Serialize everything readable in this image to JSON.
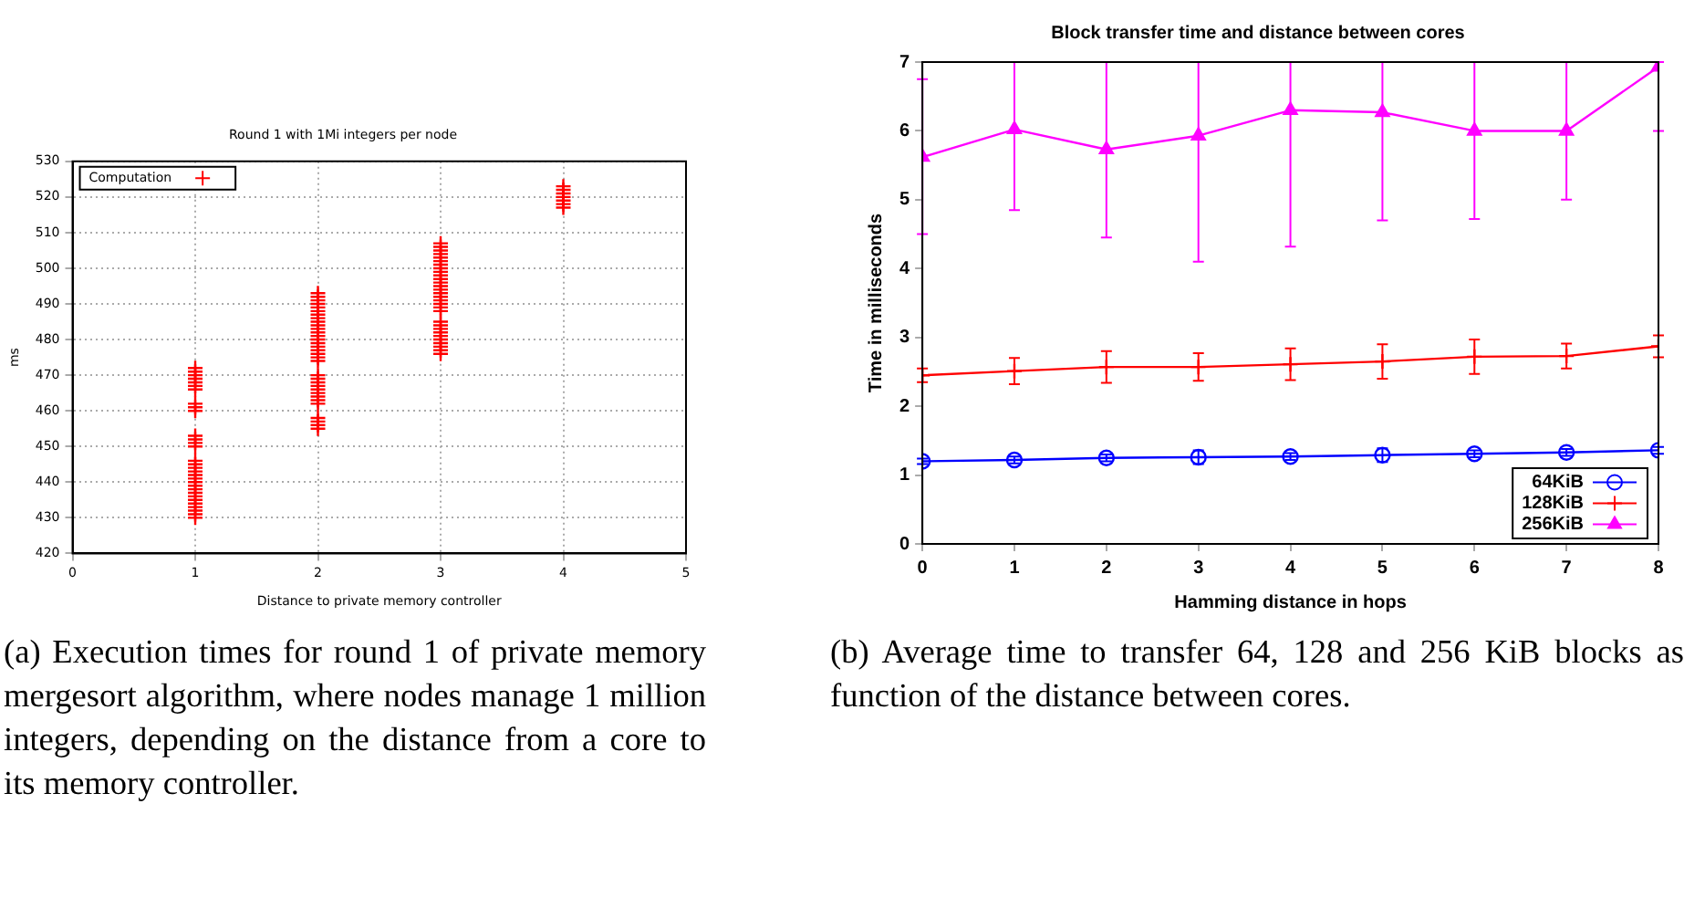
{
  "chart_data": [
    {
      "type": "scatter",
      "title": "Round 1 with 1Mi integers per node",
      "xlabel": "Distance to private memory controller",
      "ylabel": "ms",
      "xlim": [
        0,
        5
      ],
      "xticks": [
        0,
        1,
        2,
        3,
        4,
        5
      ],
      "ylim": [
        420,
        530
      ],
      "yticks": [
        420,
        430,
        440,
        450,
        460,
        470,
        480,
        490,
        500,
        510,
        520,
        530
      ],
      "grid": true,
      "legend": "top left",
      "marker": "cross",
      "annotations": [
        "(a) Execution times for round 1 of private memory mergesort algorithm, where nodes manage 1 million integers, depending on the distance from a core to its memory controller."
      ],
      "series": [
        {
          "name": "Computation",
          "color": "#ff0000",
          "x": [
            1,
            1,
            1,
            1,
            1,
            1,
            1,
            1,
            1,
            1,
            1,
            1,
            1,
            1,
            1,
            1,
            1,
            1,
            1,
            1,
            1,
            1,
            1,
            1,
            1,
            1,
            1,
            1,
            1,
            1,
            1,
            2,
            2,
            2,
            2,
            2,
            2,
            2,
            2,
            2,
            2,
            2,
            2,
            2,
            2,
            2,
            2,
            2,
            2,
            2,
            2,
            2,
            2,
            2,
            2,
            2,
            2,
            2,
            2,
            2,
            2,
            2,
            2,
            2,
            3,
            3,
            3,
            3,
            3,
            3,
            3,
            3,
            3,
            3,
            3,
            3,
            3,
            3,
            3,
            3,
            3,
            3,
            3,
            3,
            3,
            3,
            3,
            3,
            3,
            3,
            3,
            3,
            3,
            3,
            4,
            4,
            4,
            4,
            4,
            4,
            4
          ],
          "values": [
            430,
            431,
            432,
            433,
            434,
            435,
            436,
            437,
            438,
            439,
            440,
            441,
            442,
            443,
            444,
            445,
            446,
            450,
            451,
            452,
            453,
            460,
            461,
            462,
            466,
            467,
            468,
            469,
            470,
            471,
            472,
            455,
            456,
            457,
            458,
            462,
            463,
            464,
            465,
            466,
            467,
            468,
            469,
            470,
            474,
            475,
            476,
            477,
            478,
            479,
            480,
            481,
            482,
            483,
            484,
            485,
            486,
            487,
            488,
            489,
            490,
            491,
            492,
            493,
            476,
            477,
            478,
            479,
            480,
            481,
            482,
            483,
            484,
            485,
            488,
            489,
            490,
            491,
            492,
            493,
            494,
            495,
            496,
            497,
            498,
            499,
            500,
            501,
            502,
            503,
            504,
            505,
            506,
            507,
            517,
            518,
            519,
            520,
            521,
            522,
            523
          ]
        }
      ]
    },
    {
      "type": "line",
      "title": "Block transfer time and distance between cores",
      "xlabel": "Hamming distance in hops",
      "ylabel": "Time in milliseconds",
      "xlim": [
        0,
        8
      ],
      "xticks": [
        0,
        1,
        2,
        3,
        4,
        5,
        6,
        7,
        8
      ],
      "ylim": [
        0,
        7
      ],
      "yticks": [
        0,
        1,
        2,
        3,
        4,
        5,
        6,
        7
      ],
      "grid": false,
      "legend": "bottom right",
      "annotations": [
        "(b) Average time to transfer 64, 128 and 256 KiB blocks as function of the distance between cores."
      ],
      "x": [
        0,
        1,
        2,
        3,
        4,
        5,
        6,
        7,
        8
      ],
      "series": [
        {
          "name": "64KiB",
          "color": "#0000ff",
          "marker": "circle",
          "values": [
            1.2,
            1.22,
            1.25,
            1.26,
            1.27,
            1.29,
            1.31,
            1.33,
            1.36
          ],
          "errors": [
            0.04,
            0.05,
            0.05,
            0.1,
            0.05,
            0.1,
            0.05,
            0.05,
            0.05
          ]
        },
        {
          "name": "128KiB",
          "color": "#ff0000",
          "marker": "cross",
          "values": [
            2.45,
            2.51,
            2.57,
            2.57,
            2.61,
            2.65,
            2.72,
            2.73,
            2.87
          ],
          "errors": [
            0.1,
            0.19,
            0.23,
            0.2,
            0.23,
            0.25,
            0.25,
            0.18,
            0.16
          ]
        },
        {
          "name": "256KiB",
          "color": "#ff00ff",
          "marker": "triangle",
          "values": [
            5.62,
            6.02,
            5.73,
            5.93,
            6.3,
            6.27,
            6.0,
            6.0,
            6.93
          ],
          "errors": [
            [
              4.5,
              6.75
            ],
            [
              4.85,
              7
            ],
            [
              4.45,
              7
            ],
            [
              4.1,
              7
            ],
            [
              4.32,
              7
            ],
            [
              4.7,
              7
            ],
            [
              4.72,
              7
            ],
            [
              5.0,
              7
            ],
            [
              6.0,
              7
            ]
          ]
        }
      ]
    }
  ]
}
